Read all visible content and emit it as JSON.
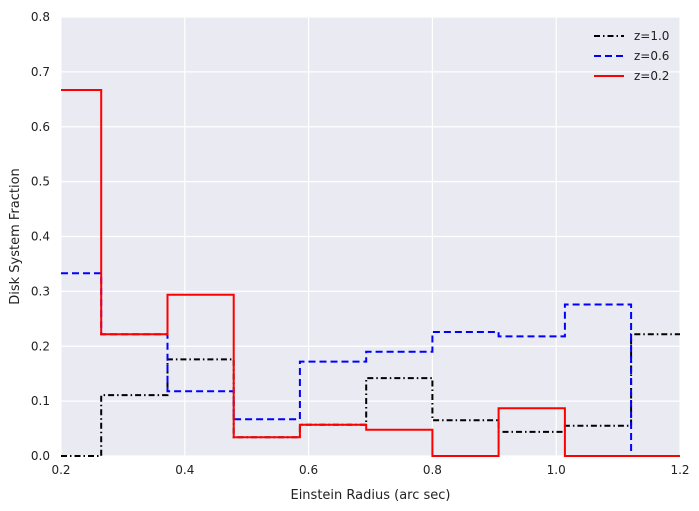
{
  "chart_data": {
    "type": "line",
    "subtype": "step-histogram",
    "xlabel": "Einstein Radius (arc sec)",
    "ylabel": "Disk System Fraction",
    "xlim": [
      0.2,
      1.2
    ],
    "ylim": [
      0.0,
      0.8
    ],
    "x_ticks": [
      0.2,
      0.4,
      0.6,
      0.8,
      1.0,
      1.2
    ],
    "x_tick_labels": [
      "0.2",
      "0.4",
      "0.6",
      "0.8",
      "1.0",
      "1.2"
    ],
    "y_ticks": [
      0.0,
      0.1,
      0.2,
      0.3,
      0.4,
      0.5,
      0.6,
      0.7,
      0.8
    ],
    "y_tick_labels": [
      "0.0",
      "0.1",
      "0.2",
      "0.3",
      "0.4",
      "0.5",
      "0.6",
      "0.7",
      "0.8"
    ],
    "grid": true,
    "legend_position": "top-right",
    "bin_edges": [
      0.2,
      0.265,
      0.372,
      0.479,
      0.586,
      0.693,
      0.8,
      0.907,
      1.014,
      1.121,
      1.2
    ],
    "series": [
      {
        "name": "z=1.0",
        "color": "#000000",
        "dash": "dash-dot",
        "values": [
          0.0,
          0.111,
          0.176,
          0.034,
          0.057,
          0.142,
          0.065,
          0.044,
          0.055,
          0.222
        ]
      },
      {
        "name": "z=0.6",
        "color": "#0000ff",
        "dash": "dashed",
        "values": [
          0.333,
          0.222,
          0.118,
          0.067,
          0.172,
          0.19,
          0.226,
          0.218,
          0.276,
          0.0
        ]
      },
      {
        "name": "z=0.2",
        "color": "#ff0000",
        "dash": "solid",
        "values": [
          0.667,
          0.222,
          0.294,
          0.034,
          0.057,
          0.048,
          0.0,
          0.087,
          0.0,
          0.0
        ]
      }
    ]
  }
}
